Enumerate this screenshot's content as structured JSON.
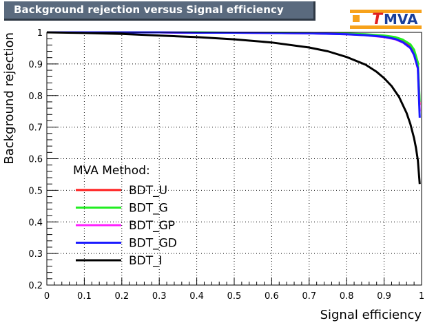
{
  "logo": {
    "text_t": "T",
    "text_mva": "MVA",
    "colors": {
      "t": "#e02020",
      "mva": "#1a3f9a",
      "bg": "#f7a21b"
    }
  },
  "chart_data": {
    "type": "line",
    "title": "Background rejection versus Signal efficiency",
    "xlabel": "Signal efficiency",
    "ylabel": "Background rejection",
    "xlim": [
      0,
      1
    ],
    "ylim": [
      0.2,
      1
    ],
    "xticks": [
      "0",
      "0.1",
      "0.2",
      "0.3",
      "0.4",
      "0.5",
      "0.6",
      "0.7",
      "0.8",
      "0.9",
      "1"
    ],
    "yticks": [
      "0.2",
      "0.3",
      "0.4",
      "0.5",
      "0.6",
      "0.7",
      "0.8",
      "0.9",
      "1"
    ],
    "grid": true,
    "legend": {
      "title": "MVA Method:",
      "placement": "bottom-left"
    },
    "series": [
      {
        "name": "BDT_U",
        "color": "#ff1a1a",
        "x": [
          0,
          0.1,
          0.2,
          0.3,
          0.4,
          0.5,
          0.6,
          0.7,
          0.8,
          0.85,
          0.9,
          0.93,
          0.95,
          0.97,
          0.98,
          0.99,
          0.995
        ],
        "y": [
          1,
          1,
          1,
          1,
          0.999,
          0.999,
          0.998,
          0.997,
          0.995,
          0.993,
          0.988,
          0.982,
          0.973,
          0.955,
          0.935,
          0.895,
          0.77
        ]
      },
      {
        "name": "BDT_G",
        "color": "#22ee22",
        "x": [
          0,
          0.1,
          0.2,
          0.3,
          0.4,
          0.5,
          0.6,
          0.7,
          0.8,
          0.85,
          0.9,
          0.93,
          0.95,
          0.97,
          0.98,
          0.99,
          0.995
        ],
        "y": [
          1,
          1,
          1,
          1,
          1,
          0.999,
          0.999,
          0.998,
          0.996,
          0.994,
          0.99,
          0.985,
          0.977,
          0.962,
          0.945,
          0.905,
          0.78
        ]
      },
      {
        "name": "BDT_GP",
        "color": "#ff22ff",
        "x": [
          0,
          0.1,
          0.2,
          0.3,
          0.4,
          0.5,
          0.6,
          0.7,
          0.8,
          0.85,
          0.9,
          0.93,
          0.95,
          0.97,
          0.98,
          0.99,
          0.995
        ],
        "y": [
          1,
          1,
          1,
          1,
          0.999,
          0.999,
          0.998,
          0.997,
          0.994,
          0.991,
          0.985,
          0.978,
          0.968,
          0.95,
          0.928,
          0.885,
          0.75
        ]
      },
      {
        "name": "BDT_GD",
        "color": "#1a1aff",
        "x": [
          0,
          0.1,
          0.2,
          0.3,
          0.4,
          0.5,
          0.6,
          0.7,
          0.8,
          0.85,
          0.9,
          0.93,
          0.95,
          0.97,
          0.98,
          0.99,
          0.995
        ],
        "y": [
          1,
          1,
          1,
          1,
          0.999,
          0.999,
          0.998,
          0.997,
          0.994,
          0.991,
          0.986,
          0.979,
          0.969,
          0.951,
          0.929,
          0.887,
          0.73
        ]
      },
      {
        "name": "BDT_I",
        "color": "#000000",
        "x": [
          0,
          0.1,
          0.2,
          0.3,
          0.4,
          0.5,
          0.6,
          0.7,
          0.75,
          0.8,
          0.85,
          0.88,
          0.9,
          0.92,
          0.94,
          0.96,
          0.97,
          0.98,
          0.985,
          0.99,
          0.995
        ],
        "y": [
          1,
          0.998,
          0.995,
          0.99,
          0.985,
          0.978,
          0.968,
          0.952,
          0.94,
          0.922,
          0.898,
          0.875,
          0.855,
          0.83,
          0.795,
          0.745,
          0.71,
          0.665,
          0.635,
          0.595,
          0.52
        ]
      }
    ]
  }
}
